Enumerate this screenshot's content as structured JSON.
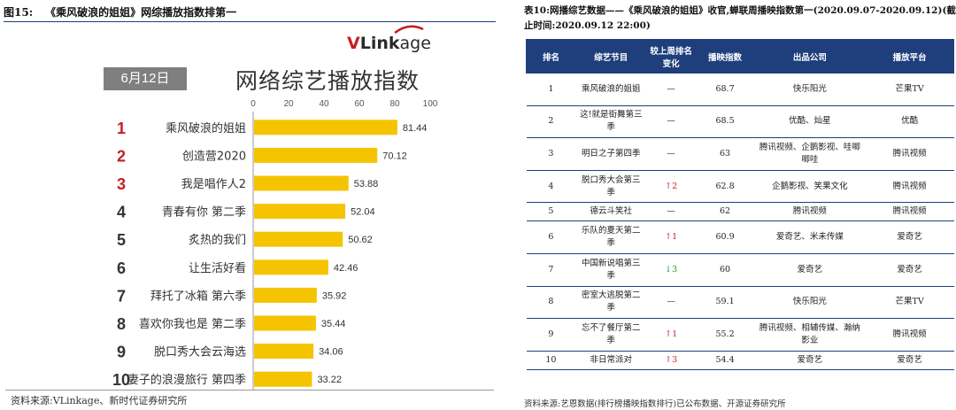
{
  "left": {
    "figure_label": "图15:",
    "figure_caption": "《乘风破浪的姐姐》网综播放指数排第一",
    "logo": {
      "v": "V",
      "rest": "Link",
      "tail": "age"
    },
    "date_label": "6月12日",
    "source": "资料来源:VLinkage、新时代证券研究所"
  },
  "chart_data": {
    "type": "bar",
    "title": "网络综艺播放指数",
    "orientation": "horizontal",
    "ranks": [
      "1",
      "2",
      "3",
      "4",
      "5",
      "6",
      "7",
      "8",
      "9",
      "10"
    ],
    "categories": [
      "乘风破浪的姐姐",
      "创造营2020",
      "我是唱作人2",
      "青春有你 第二季",
      "炙热的我们",
      "让生活好看",
      "拜托了冰箱 第六季",
      "喜欢你我也是 第二季",
      "脱口秀大会云海选",
      "妻子的浪漫旅行 第四季"
    ],
    "values": [
      81.44,
      70.12,
      53.88,
      52.04,
      50.62,
      42.46,
      35.92,
      35.44,
      34.06,
      33.22
    ],
    "value_labels": [
      "81.44",
      "70.12",
      "53.88",
      "52.04",
      "50.62",
      "42.46",
      "35.92",
      "35.44",
      "34.06",
      "33.22"
    ],
    "xlim": [
      0,
      100
    ],
    "xticks": [
      "0",
      "20",
      "40",
      "60",
      "80",
      "100"
    ],
    "bar_color": "#f5c400",
    "top_rank_color": "#c61e23",
    "rank_color": "#333333"
  },
  "right": {
    "title": "表10:网播综艺数据——《乘风破浪的姐姐》收官,蝉联周播映指数第一(2020.09.07-2020.09.12)(截止时间:2020.09.12 22:00)",
    "headers": [
      "排名",
      "综艺节目",
      "较上周排名变化",
      "播映指数",
      "出品公司",
      "播放平台"
    ],
    "rows": [
      {
        "rank": "1",
        "show": "乘风破浪的姐姐",
        "change": "—",
        "dir": "",
        "index": "68.7",
        "company": "快乐阳光",
        "platform": "芒果TV"
      },
      {
        "rank": "2",
        "show": "这!就是街舞第三季",
        "change": "—",
        "dir": "",
        "index": "68.5",
        "company": "优酷、灿星",
        "platform": "优酷"
      },
      {
        "rank": "3",
        "show": "明日之子第四季",
        "change": "—",
        "dir": "",
        "index": "63",
        "company": "腾讯视频、企鹅影视、哇唧唧哇",
        "platform": "腾讯视频"
      },
      {
        "rank": "4",
        "show": "脱口秀大会第三季",
        "change": "↑2",
        "dir": "up",
        "index": "62.8",
        "company": "企鹅影视、笑果文化",
        "platform": "腾讯视频"
      },
      {
        "rank": "5",
        "show": "德云斗笑社",
        "change": "—",
        "dir": "",
        "index": "62",
        "company": "腾讯视频",
        "platform": "腾讯视频"
      },
      {
        "rank": "6",
        "show": "乐队的夏天第二季",
        "change": "↑1",
        "dir": "up",
        "index": "60.9",
        "company": "爱奇艺、米未传媒",
        "platform": "爱奇艺"
      },
      {
        "rank": "7",
        "show": "中国新说唱第三季",
        "change": "↓3",
        "dir": "down",
        "index": "60",
        "company": "爱奇艺",
        "platform": "爱奇艺"
      },
      {
        "rank": "8",
        "show": "密室大逃脱第二季",
        "change": "—",
        "dir": "",
        "index": "59.1",
        "company": "快乐阳光",
        "platform": "芒果TV"
      },
      {
        "rank": "9",
        "show": "忘不了餐厅第二季",
        "change": "↑1",
        "dir": "up",
        "index": "55.2",
        "company": "腾讯视频、相辅传媒、瀚纳影业",
        "platform": "腾讯视频"
      },
      {
        "rank": "10",
        "show": "非日常派对",
        "change": "↑3",
        "dir": "up",
        "index": "54.4",
        "company": "爱奇艺",
        "platform": "爱奇艺"
      }
    ],
    "source": "资料来源:艺恩数据(排行榜播映指数排行)已公布数据、开源证券研究所"
  }
}
